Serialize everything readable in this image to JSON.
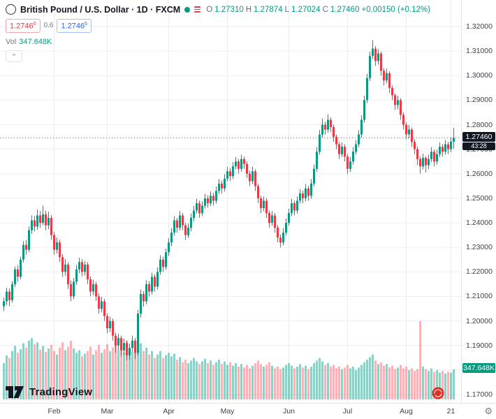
{
  "header": {
    "symbol_title": "British Pound / U.S. Dollar · 1D · FXCM",
    "ohlc": {
      "o_label": "O",
      "o": "1.27310",
      "h_label": "H",
      "h": "1.27874",
      "l_label": "L",
      "l": "1.27024",
      "c_label": "C",
      "c": "1.27460",
      "change": "+0.00150 (+0.12%)"
    },
    "bid": "1.2746",
    "bid_sup": "0",
    "spread": "0.6",
    "ask": "1.2746",
    "ask_sup": "6",
    "vol_label": "Vol",
    "vol_value": "347.648K",
    "collapse_label": "^"
  },
  "axis": {
    "price_ticks": [
      "1.32000",
      "1.31000",
      "1.30000",
      "1.29000",
      "1.28000",
      "1.27000",
      "1.26000",
      "1.25000",
      "1.24000",
      "1.23000",
      "1.22000",
      "1.21000",
      "1.20000",
      "1.19000",
      "1.18000",
      "1.17000"
    ],
    "time_ticks": [
      {
        "label": "Feb",
        "i": 18
      },
      {
        "label": "Mar",
        "i": 37
      },
      {
        "label": "Apr",
        "i": 59
      },
      {
        "label": "May",
        "i": 80
      },
      {
        "label": "Jun",
        "i": 102
      },
      {
        "label": "Jul",
        "i": 123
      },
      {
        "label": "Aug",
        "i": 144
      },
      {
        "label": "21",
        "i": 160
      }
    ],
    "price_badge": "1.27460",
    "countdown": "43:28",
    "volume_badge": "347.648K"
  },
  "footer": {
    "logo_text": "TradingView",
    "settings_icon": "⚙"
  },
  "colors": {
    "up": "#089981",
    "down": "#f23645",
    "vol_up": "rgba(8,153,129,0.45)",
    "vol_down": "rgba(242,54,69,0.38)",
    "grid": "#eceef2",
    "badge_dark": "#131722",
    "accent_blue": "#2962ff"
  },
  "chart_data": {
    "type": "candlestick+volume",
    "title": "British Pound / U.S. Dollar",
    "interval": "1D",
    "source": "FXCM",
    "ylim": [
      1.17,
      1.32
    ],
    "last_price": 1.2746,
    "last_change": "+0.00150 (+0.12%)",
    "ohlc": [
      [
        1.206,
        1.2095,
        1.204,
        1.208
      ],
      [
        1.208,
        1.2135,
        1.2065,
        1.212
      ],
      [
        1.212,
        1.2132,
        1.206,
        1.2085
      ],
      [
        1.2085,
        1.2162,
        1.2075,
        1.215
      ],
      [
        1.215,
        1.2222,
        1.2138,
        1.221
      ],
      [
        1.221,
        1.2228,
        1.216,
        1.218
      ],
      [
        1.218,
        1.2262,
        1.217,
        1.225
      ],
      [
        1.225,
        1.2325,
        1.2238,
        1.231
      ],
      [
        1.231,
        1.233,
        1.227,
        1.229
      ],
      [
        1.229,
        1.2385,
        1.228,
        1.237
      ],
      [
        1.237,
        1.243,
        1.2355,
        1.241
      ],
      [
        1.241,
        1.2428,
        1.2365,
        1.2385
      ],
      [
        1.2385,
        1.2455,
        1.2372,
        1.243
      ],
      [
        1.243,
        1.2448,
        1.238,
        1.24
      ],
      [
        1.24,
        1.247,
        1.239,
        1.2435
      ],
      [
        1.2435,
        1.245,
        1.237,
        1.239
      ],
      [
        1.239,
        1.2445,
        1.2375,
        1.242
      ],
      [
        1.242,
        1.2432,
        1.233,
        1.235
      ],
      [
        1.235,
        1.2362,
        1.227,
        1.229
      ],
      [
        1.229,
        1.234,
        1.2275,
        1.232
      ],
      [
        1.232,
        1.2332,
        1.224,
        1.226
      ],
      [
        1.226,
        1.2272,
        1.218,
        1.22
      ],
      [
        1.22,
        1.2252,
        1.2185,
        1.223
      ],
      [
        1.223,
        1.224,
        1.213,
        1.215
      ],
      [
        1.215,
        1.2165,
        1.208,
        1.21
      ],
      [
        1.21,
        1.2175,
        1.2088,
        1.216
      ],
      [
        1.216,
        1.2228,
        1.2148,
        1.221
      ],
      [
        1.221,
        1.2258,
        1.2195,
        1.224
      ],
      [
        1.224,
        1.2252,
        1.2182,
        1.22
      ],
      [
        1.22,
        1.2245,
        1.2185,
        1.223
      ],
      [
        1.223,
        1.224,
        1.215,
        1.217
      ],
      [
        1.217,
        1.2182,
        1.21,
        1.212
      ],
      [
        1.212,
        1.2168,
        1.2105,
        1.215
      ],
      [
        1.215,
        1.216,
        1.2082,
        1.21
      ],
      [
        1.21,
        1.2112,
        1.203,
        1.205
      ],
      [
        1.205,
        1.2098,
        1.2035,
        1.208
      ],
      [
        1.208,
        1.209,
        1.2,
        1.202
      ],
      [
        1.202,
        1.2032,
        1.195,
        1.197
      ],
      [
        1.197,
        1.2018,
        1.1955,
        1.2
      ],
      [
        1.2,
        1.201,
        1.192,
        1.194
      ],
      [
        1.194,
        1.1952,
        1.187,
        1.19
      ],
      [
        1.19,
        1.1948,
        1.1885,
        1.193
      ],
      [
        1.193,
        1.194,
        1.1855,
        1.188
      ],
      [
        1.188,
        1.1928,
        1.1862,
        1.191
      ],
      [
        1.191,
        1.192,
        1.184,
        1.186
      ],
      [
        1.186,
        1.1908,
        1.1842,
        1.189
      ],
      [
        1.189,
        1.194,
        1.1875,
        1.192
      ],
      [
        1.192,
        1.193,
        1.1845,
        1.187
      ],
      [
        1.187,
        1.2045,
        1.186,
        1.203
      ],
      [
        1.203,
        1.2128,
        1.2015,
        1.211
      ],
      [
        1.211,
        1.2122,
        1.2058,
        1.208
      ],
      [
        1.208,
        1.2165,
        1.2068,
        1.215
      ],
      [
        1.215,
        1.2162,
        1.21,
        1.212
      ],
      [
        1.212,
        1.2196,
        1.2108,
        1.218
      ],
      [
        1.218,
        1.219,
        1.212,
        1.214
      ],
      [
        1.214,
        1.2218,
        1.2128,
        1.22
      ],
      [
        1.22,
        1.2268,
        1.2188,
        1.225
      ],
      [
        1.225,
        1.2262,
        1.22,
        1.222
      ],
      [
        1.222,
        1.2295,
        1.2208,
        1.228
      ],
      [
        1.228,
        1.2338,
        1.2265,
        1.232
      ],
      [
        1.232,
        1.2378,
        1.2305,
        1.236
      ],
      [
        1.236,
        1.2428,
        1.2348,
        1.241
      ],
      [
        1.241,
        1.242,
        1.236,
        1.238
      ],
      [
        1.238,
        1.2448,
        1.2368,
        1.243
      ],
      [
        1.243,
        1.244,
        1.237,
        1.239
      ],
      [
        1.239,
        1.24,
        1.233,
        1.235
      ],
      [
        1.235,
        1.2398,
        1.2338,
        1.238
      ],
      [
        1.238,
        1.2438,
        1.2365,
        1.242
      ],
      [
        1.242,
        1.2468,
        1.2405,
        1.245
      ],
      [
        1.245,
        1.2498,
        1.2438,
        1.248
      ],
      [
        1.248,
        1.249,
        1.242,
        1.244
      ],
      [
        1.244,
        1.2488,
        1.2428,
        1.247
      ],
      [
        1.247,
        1.2518,
        1.2458,
        1.25
      ],
      [
        1.25,
        1.2512,
        1.2462,
        1.248
      ],
      [
        1.248,
        1.2528,
        1.2468,
        1.251
      ],
      [
        1.251,
        1.2522,
        1.247,
        1.249
      ],
      [
        1.249,
        1.2548,
        1.2478,
        1.253
      ],
      [
        1.253,
        1.2578,
        1.2518,
        1.256
      ],
      [
        1.256,
        1.2572,
        1.252,
        1.254
      ],
      [
        1.254,
        1.2598,
        1.2528,
        1.258
      ],
      [
        1.258,
        1.2628,
        1.2568,
        1.261
      ],
      [
        1.261,
        1.2622,
        1.257,
        1.259
      ],
      [
        1.259,
        1.2648,
        1.2578,
        1.263
      ],
      [
        1.263,
        1.2668,
        1.2618,
        1.265
      ],
      [
        1.265,
        1.266,
        1.26,
        1.262
      ],
      [
        1.262,
        1.2678,
        1.2608,
        1.266
      ],
      [
        1.266,
        1.267,
        1.262,
        1.264
      ],
      [
        1.264,
        1.265,
        1.2582,
        1.26
      ],
      [
        1.26,
        1.2612,
        1.255,
        1.257
      ],
      [
        1.257,
        1.2628,
        1.2558,
        1.261
      ],
      [
        1.261,
        1.2618,
        1.253,
        1.255
      ],
      [
        1.255,
        1.256,
        1.248,
        1.25
      ],
      [
        1.25,
        1.251,
        1.244,
        1.246
      ],
      [
        1.246,
        1.2508,
        1.2448,
        1.249
      ],
      [
        1.249,
        1.25,
        1.242,
        1.244
      ],
      [
        1.244,
        1.245,
        1.238,
        1.24
      ],
      [
        1.24,
        1.2448,
        1.2388,
        1.243
      ],
      [
        1.243,
        1.244,
        1.236,
        1.238
      ],
      [
        1.238,
        1.239,
        1.232,
        1.234
      ],
      [
        1.234,
        1.2352,
        1.23,
        1.232
      ],
      [
        1.232,
        1.2378,
        1.2308,
        1.236
      ],
      [
        1.236,
        1.2418,
        1.2348,
        1.24
      ],
      [
        1.24,
        1.2458,
        1.2388,
        1.244
      ],
      [
        1.244,
        1.2498,
        1.2428,
        1.248
      ],
      [
        1.248,
        1.249,
        1.243,
        1.245
      ],
      [
        1.245,
        1.2508,
        1.2438,
        1.249
      ],
      [
        1.249,
        1.2538,
        1.2478,
        1.252
      ],
      [
        1.252,
        1.2532,
        1.248,
        1.25
      ],
      [
        1.25,
        1.2558,
        1.2488,
        1.254
      ],
      [
        1.254,
        1.255,
        1.249,
        1.251
      ],
      [
        1.251,
        1.2578,
        1.2498,
        1.256
      ],
      [
        1.256,
        1.2638,
        1.2548,
        1.262
      ],
      [
        1.262,
        1.2708,
        1.2608,
        1.269
      ],
      [
        1.269,
        1.2778,
        1.2678,
        1.276
      ],
      [
        1.276,
        1.2825,
        1.2748,
        1.28
      ],
      [
        1.28,
        1.2812,
        1.276,
        1.278
      ],
      [
        1.278,
        1.2842,
        1.2768,
        1.282
      ],
      [
        1.282,
        1.283,
        1.277,
        1.279
      ],
      [
        1.279,
        1.28,
        1.273,
        1.275
      ],
      [
        1.275,
        1.276,
        1.27,
        1.272
      ],
      [
        1.272,
        1.273,
        1.266,
        1.268
      ],
      [
        1.268,
        1.2728,
        1.2668,
        1.271
      ],
      [
        1.271,
        1.272,
        1.265,
        1.267
      ],
      [
        1.267,
        1.268,
        1.26,
        1.262
      ],
      [
        1.262,
        1.2668,
        1.2608,
        1.265
      ],
      [
        1.265,
        1.2708,
        1.2638,
        1.269
      ],
      [
        1.269,
        1.2738,
        1.2678,
        1.272
      ],
      [
        1.272,
        1.2778,
        1.2708,
        1.276
      ],
      [
        1.276,
        1.2838,
        1.2748,
        1.282
      ],
      [
        1.282,
        1.2918,
        1.2808,
        1.29
      ],
      [
        1.29,
        1.3008,
        1.2888,
        1.299
      ],
      [
        1.299,
        1.3098,
        1.2978,
        1.308
      ],
      [
        1.308,
        1.3145,
        1.3068,
        1.311
      ],
      [
        1.311,
        1.312,
        1.304,
        1.306
      ],
      [
        1.306,
        1.3108,
        1.3045,
        1.309
      ],
      [
        1.309,
        1.3098,
        1.3,
        1.302
      ],
      [
        1.302,
        1.303,
        1.296,
        1.298
      ],
      [
        1.298,
        1.3028,
        1.2968,
        1.301
      ],
      [
        1.301,
        1.3018,
        1.293,
        1.295
      ],
      [
        1.295,
        1.296,
        1.29,
        1.292
      ],
      [
        1.292,
        1.2928,
        1.286,
        1.288
      ],
      [
        1.288,
        1.2918,
        1.2862,
        1.29
      ],
      [
        1.29,
        1.2908,
        1.282,
        1.284
      ],
      [
        1.284,
        1.285,
        1.278,
        1.28
      ],
      [
        1.28,
        1.281,
        1.274,
        1.276
      ],
      [
        1.276,
        1.2798,
        1.2745,
        1.278
      ],
      [
        1.278,
        1.2788,
        1.271,
        1.273
      ],
      [
        1.273,
        1.274,
        1.268,
        1.27
      ],
      [
        1.27,
        1.271,
        1.2635,
        1.266
      ],
      [
        1.266,
        1.267,
        1.26,
        1.263
      ],
      [
        1.263,
        1.2682,
        1.2618,
        1.2665
      ],
      [
        1.2665,
        1.2672,
        1.2605,
        1.2635
      ],
      [
        1.2635,
        1.2678,
        1.2618,
        1.266
      ],
      [
        1.266,
        1.2708,
        1.2648,
        1.269
      ],
      [
        1.269,
        1.2698,
        1.263,
        1.265
      ],
      [
        1.265,
        1.2698,
        1.2638,
        1.268
      ],
      [
        1.268,
        1.2728,
        1.2668,
        1.271
      ],
      [
        1.271,
        1.272,
        1.267,
        1.269
      ],
      [
        1.269,
        1.2738,
        1.2678,
        1.272
      ],
      [
        1.272,
        1.273,
        1.268,
        1.27
      ],
      [
        1.27,
        1.2748,
        1.2688,
        1.2731
      ],
      [
        1.2731,
        1.27874,
        1.27024,
        1.2746
      ]
    ],
    "volumes_k": [
      420,
      510,
      480,
      560,
      620,
      540,
      580,
      650,
      600,
      680,
      710,
      640,
      660,
      580,
      620,
      550,
      590,
      630,
      560,
      520,
      600,
      660,
      570,
      610,
      680,
      590,
      540,
      570,
      500,
      530,
      560,
      610,
      520,
      570,
      630,
      540,
      580,
      640,
      560,
      600,
      660,
      580,
      620,
      540,
      680,
      590,
      550,
      610,
      720,
      650,
      560,
      600,
      520,
      560,
      480,
      520,
      560,
      480,
      510,
      540,
      500,
      530,
      460,
      490,
      430,
      460,
      420,
      450,
      480,
      440,
      410,
      440,
      470,
      420,
      450,
      400,
      430,
      460,
      410,
      440,
      400,
      430,
      390,
      420,
      380,
      410,
      370,
      400,
      360,
      390,
      420,
      450,
      410,
      380,
      400,
      430,
      390,
      360,
      380,
      350,
      370,
      400,
      420,
      390,
      360,
      380,
      410,
      370,
      390,
      350,
      380,
      420,
      450,
      480,
      440,
      400,
      420,
      380,
      400,
      360,
      380,
      350,
      370,
      400,
      360,
      380,
      340,
      370,
      400,
      430,
      460,
      490,
      520,
      450,
      410,
      430,
      390,
      410,
      370,
      390,
      350,
      370,
      400,
      360,
      380,
      340,
      360,
      330,
      350,
      905,
      380,
      350,
      330,
      360,
      320,
      340,
      310,
      330,
      300,
      320,
      310,
      347.648
    ]
  }
}
